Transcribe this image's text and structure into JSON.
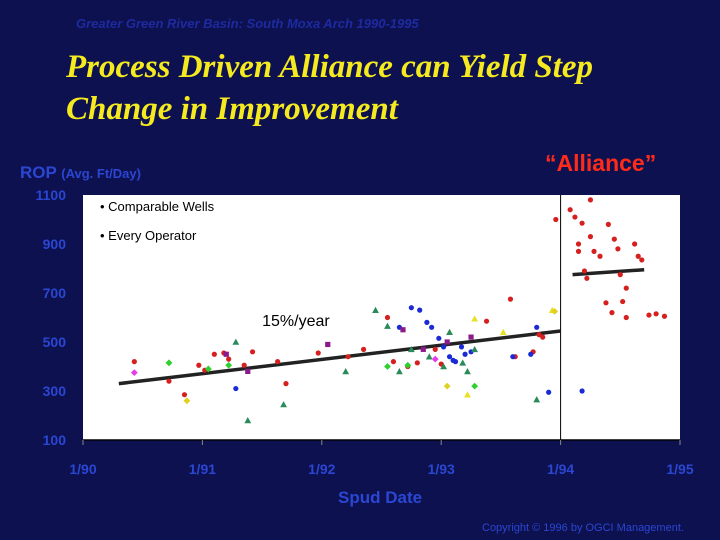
{
  "header": {
    "subtitle": "Greater Green River Basin: South Moxa Arch 1990-1995",
    "title": "Process Driven Alliance can Yield Step Change in Improvement"
  },
  "legend_notes": [
    "• Comparable Wells",
    "• Every Operator"
  ],
  "footer": {
    "copyright": "Copyright © 1996 by OGCI Management."
  },
  "colors": {
    "background": "#0d1150",
    "plot_area": "#ffffff",
    "axis_text": "#2b46d2",
    "title": "#f5ea1f",
    "alliance_red": "#ee1c1c"
  },
  "chart_data": {
    "type": "scatter",
    "xlabel": "Spud Date",
    "ylabel": "ROP",
    "ylabel_unit": "(Avg. Ft/Day)",
    "xlim": [
      1990.0,
      1995.0
    ],
    "ylim": [
      100,
      1100
    ],
    "x_ticks": [
      1990,
      1991,
      1992,
      1993,
      1994,
      1995
    ],
    "x_tick_labels": [
      "1/90",
      "1/91",
      "1/92",
      "1/93",
      "1/94",
      "1/95"
    ],
    "y_ticks": [
      100,
      300,
      500,
      700,
      900,
      1100
    ],
    "y_tick_labels": [
      "100",
      "300",
      "500",
      "700",
      "900",
      "1100"
    ],
    "grid": false,
    "annotations": [
      {
        "text": "15%/year",
        "x": 1991.5,
        "y": 565
      },
      {
        "text": "“Alliance”",
        "x": 1994.3,
        "y": 1180
      }
    ],
    "vertical_line_x": 1994.0,
    "trend_lines": [
      {
        "name": "15%/year",
        "x": [
          1990.3,
          1994.0
        ],
        "y": [
          330,
          545
        ]
      },
      {
        "name": "Alliance",
        "x": [
          1994.1,
          1994.7
        ],
        "y": [
          775,
          795
        ]
      }
    ],
    "series": [
      {
        "color": "#d62020",
        "shape": "circle",
        "points": [
          [
            1990.43,
            420
          ],
          [
            1990.72,
            340
          ],
          [
            1990.85,
            285
          ],
          [
            1990.97,
            405
          ],
          [
            1991.02,
            385
          ],
          [
            1991.1,
            450
          ],
          [
            1991.18,
            455
          ],
          [
            1991.22,
            430
          ],
          [
            1991.35,
            405
          ],
          [
            1991.42,
            460
          ],
          [
            1991.63,
            420
          ],
          [
            1991.7,
            330
          ],
          [
            1991.97,
            455
          ],
          [
            1992.22,
            440
          ],
          [
            1992.35,
            470
          ],
          [
            1992.55,
            600
          ],
          [
            1992.6,
            420
          ],
          [
            1992.72,
            400
          ],
          [
            1992.8,
            415
          ],
          [
            1992.95,
            470
          ],
          [
            1993.0,
            410
          ],
          [
            1993.38,
            585
          ],
          [
            1993.58,
            675
          ],
          [
            1993.62,
            440
          ],
          [
            1993.77,
            460
          ],
          [
            1993.82,
            530
          ],
          [
            1993.85,
            520
          ],
          [
            1993.96,
            1000
          ],
          [
            1994.08,
            1040
          ],
          [
            1994.12,
            1010
          ],
          [
            1994.18,
            985
          ],
          [
            1994.15,
            900
          ],
          [
            1994.25,
            1080
          ],
          [
            1994.15,
            870
          ],
          [
            1994.2,
            790
          ],
          [
            1994.22,
            760
          ],
          [
            1994.28,
            870
          ],
          [
            1994.33,
            850
          ],
          [
            1994.4,
            980
          ],
          [
            1994.45,
            920
          ],
          [
            1994.48,
            880
          ],
          [
            1994.5,
            775
          ],
          [
            1994.38,
            660
          ],
          [
            1994.43,
            620
          ],
          [
            1994.52,
            665
          ],
          [
            1994.55,
            600
          ],
          [
            1994.62,
            900
          ],
          [
            1994.65,
            850
          ],
          [
            1994.68,
            835
          ],
          [
            1994.74,
            610
          ],
          [
            1994.8,
            615
          ],
          [
            1994.87,
            605
          ],
          [
            1994.55,
            720
          ],
          [
            1994.25,
            930
          ]
        ]
      },
      {
        "color": "#1a2bd6",
        "shape": "circle",
        "points": [
          [
            1991.28,
            310
          ],
          [
            1992.65,
            560
          ],
          [
            1992.75,
            640
          ],
          [
            1992.82,
            630
          ],
          [
            1992.88,
            580
          ],
          [
            1992.92,
            560
          ],
          [
            1992.98,
            515
          ],
          [
            1993.02,
            480
          ],
          [
            1993.07,
            440
          ],
          [
            1993.1,
            425
          ],
          [
            1993.12,
            420
          ],
          [
            1993.17,
            480
          ],
          [
            1993.2,
            450
          ],
          [
            1993.25,
            460
          ],
          [
            1993.6,
            440
          ],
          [
            1993.75,
            450
          ],
          [
            1993.8,
            560
          ],
          [
            1993.9,
            295
          ],
          [
            1994.18,
            300
          ]
        ]
      },
      {
        "color": "#8b1a8b",
        "shape": "square",
        "points": [
          [
            1991.2,
            450
          ],
          [
            1991.38,
            380
          ],
          [
            1992.05,
            490
          ],
          [
            1992.68,
            550
          ],
          [
            1992.85,
            470
          ],
          [
            1993.05,
            500
          ],
          [
            1993.25,
            520
          ]
        ]
      },
      {
        "color": "#2a8a5a",
        "shape": "triangle",
        "points": [
          [
            1991.38,
            180
          ],
          [
            1991.68,
            245
          ],
          [
            1992.45,
            630
          ],
          [
            1992.55,
            565
          ],
          [
            1992.65,
            380
          ],
          [
            1992.75,
            470
          ],
          [
            1992.9,
            440
          ],
          [
            1993.02,
            400
          ],
          [
            1993.07,
            540
          ],
          [
            1993.18,
            415
          ],
          [
            1993.22,
            380
          ],
          [
            1993.28,
            470
          ],
          [
            1993.8,
            265
          ],
          [
            1991.28,
            500
          ],
          [
            1992.2,
            380
          ]
        ]
      },
      {
        "color": "#e8e020",
        "shape": "triangle",
        "points": [
          [
            1993.22,
            285
          ],
          [
            1993.28,
            595
          ],
          [
            1993.52,
            540
          ],
          [
            1993.93,
            630
          ]
        ]
      },
      {
        "color": "#2ed02e",
        "shape": "diamond",
        "points": [
          [
            1990.72,
            415
          ],
          [
            1991.05,
            390
          ],
          [
            1991.22,
            405
          ],
          [
            1992.55,
            400
          ],
          [
            1992.72,
            405
          ],
          [
            1993.28,
            320
          ]
        ]
      },
      {
        "color": "#e0d020",
        "shape": "diamond",
        "points": [
          [
            1990.87,
            260
          ],
          [
            1993.05,
            320
          ],
          [
            1993.95,
            625
          ]
        ]
      },
      {
        "color": "#e83ae8",
        "shape": "diamond",
        "points": [
          [
            1990.43,
            375
          ],
          [
            1992.95,
            430
          ]
        ]
      }
    ]
  }
}
